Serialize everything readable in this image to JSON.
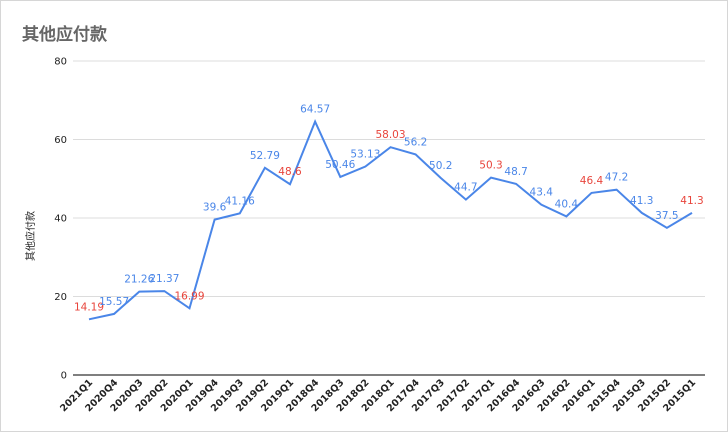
{
  "chart_data": {
    "type": "line",
    "title": "其他应付款",
    "xlabel": "",
    "ylabel": "其他应付款",
    "ylim": [
      0,
      80
    ],
    "yticks": [
      0,
      20,
      40,
      60,
      80
    ],
    "grid": true,
    "legend": "none",
    "line_color": "#4a86e8",
    "label_colors": {
      "normal": "#4a86e8",
      "low": "#e8453c"
    },
    "categories": [
      "2021Q1",
      "2020Q4",
      "2020Q3",
      "2020Q2",
      "2020Q1",
      "2019Q4",
      "2019Q3",
      "2019Q2",
      "2019Q1",
      "2018Q4",
      "2018Q3",
      "2018Q2",
      "2018Q1",
      "2017Q4",
      "2017Q3",
      "2017Q2",
      "2017Q1",
      "2016Q4",
      "2016Q3",
      "2016Q2",
      "2016Q1",
      "2015Q4",
      "2015Q3",
      "2015Q2",
      "2015Q1"
    ],
    "values": [
      14.19,
      15.57,
      21.26,
      21.37,
      16.99,
      39.6,
      41.16,
      52.79,
      48.6,
      64.57,
      50.46,
      53.13,
      58.03,
      56.2,
      50.2,
      44.7,
      50.3,
      48.7,
      43.4,
      40.4,
      46.4,
      47.2,
      41.3,
      37.5,
      41.3
    ],
    "labels": [
      "14.19",
      "15.57",
      "21.26",
      "21.37",
      "16.99",
      "39.6",
      "41.16",
      "52.79",
      "48.6",
      "64.57",
      "50.46",
      "53.13",
      "58.03",
      "56.2",
      "50.2",
      "44.7",
      "50.3",
      "48.7",
      "43.4",
      "40.4",
      "46.4",
      "47.2",
      "41.3",
      "37.5",
      "41.3"
    ],
    "label_is_red": [
      true,
      false,
      false,
      false,
      true,
      false,
      false,
      false,
      true,
      false,
      false,
      false,
      true,
      false,
      false,
      false,
      true,
      false,
      false,
      false,
      true,
      false,
      false,
      false,
      true
    ]
  }
}
